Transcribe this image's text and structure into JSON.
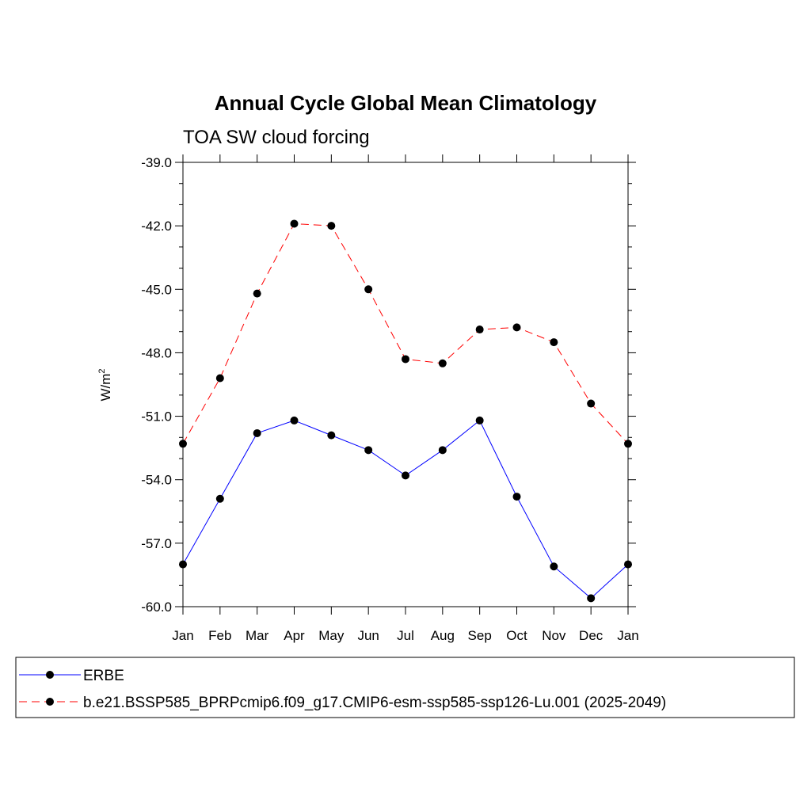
{
  "chart_data": {
    "type": "line",
    "title": "Annual Cycle Global Mean Climatology",
    "subtitle": "TOA SW cloud forcing",
    "ylabel": "W/m",
    "ylabel_superscript": "2",
    "xlabel": "",
    "categories": [
      "Jan",
      "Feb",
      "Mar",
      "Apr",
      "May",
      "Jun",
      "Jul",
      "Aug",
      "Sep",
      "Oct",
      "Nov",
      "Dec",
      "Jan"
    ],
    "ylim": [
      -60.0,
      -39.0
    ],
    "yticks": [
      "-60.0",
      "-57.0",
      "-54.0",
      "-51.0",
      "-48.0",
      "-45.0",
      "-42.0",
      "-39.0"
    ],
    "ytick_values": [
      -60,
      -57,
      -54,
      -51,
      -48,
      -45,
      -42,
      -39
    ],
    "grid": false,
    "legend_position": "bottom",
    "series": [
      {
        "name": "ERBE",
        "color": "#0000ff",
        "dash": "solid",
        "values": [
          -58.0,
          -54.9,
          -51.8,
          -51.2,
          -51.9,
          -52.6,
          -53.8,
          -52.6,
          -51.2,
          -54.8,
          -58.1,
          -59.6,
          -58.0
        ]
      },
      {
        "name": "b.e21.BSSP585_BPRPcmip6.f09_g17.CMIP6-esm-ssp585-ssp126-Lu.001 (2025-2049)",
        "color": "#ff0000",
        "dash": "dashed",
        "values": [
          -52.3,
          -49.2,
          -45.2,
          -41.9,
          -42.0,
          -45.0,
          -48.3,
          -48.5,
          -46.9,
          -46.8,
          -47.5,
          -50.4,
          -52.3
        ]
      }
    ]
  }
}
